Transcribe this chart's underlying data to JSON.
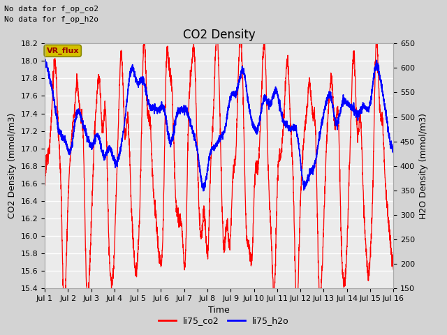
{
  "title": "CO2 Density",
  "xlabel": "Time",
  "ylabel_left": "CO2 Density (mmol/m3)",
  "ylabel_right": "H2O Density (mmol/m3)",
  "annotation_line1": "No data for f_op_co2",
  "annotation_line2": "No data for f_op_h2o",
  "legend_box_text": "VR_flux",
  "legend_box_facecolor": "#d4c000",
  "legend_box_edgecolor": "#888800",
  "legend_box_text_color": "#990000",
  "ylim_left": [
    15.4,
    18.2
  ],
  "ylim_right": [
    150,
    650
  ],
  "yticks_left": [
    15.4,
    15.6,
    15.8,
    16.0,
    16.2,
    16.4,
    16.6,
    16.8,
    17.0,
    17.2,
    17.4,
    17.6,
    17.8,
    18.0,
    18.2
  ],
  "yticks_right": [
    150,
    200,
    250,
    300,
    350,
    400,
    450,
    500,
    550,
    600,
    650
  ],
  "xtick_labels": [
    "Jul 1",
    "Jul 2",
    "Jul 3",
    "Jul 4",
    "Jul 5",
    "Jul 6",
    "Jul 7",
    "Jul 8",
    "Jul 9",
    "Jul 10",
    "Jul 11",
    "Jul 12",
    "Jul 13",
    "Jul 14",
    "Jul 15",
    "Jul 16"
  ],
  "n_days": 15,
  "co2_color": "#ff0000",
  "h2o_color": "#0000ff",
  "fig_bg_color": "#d3d3d3",
  "plot_bg_color": "#ebebeb",
  "grid_color": "#ffffff",
  "title_fontsize": 12,
  "label_fontsize": 9,
  "tick_fontsize": 8,
  "annotation_fontsize": 8,
  "legend_entries": [
    "li75_co2",
    "li75_h2o"
  ],
  "legend_colors": [
    "#ff0000",
    "#0000ff"
  ],
  "linewidth_co2": 0.9,
  "linewidth_h2o": 1.2
}
